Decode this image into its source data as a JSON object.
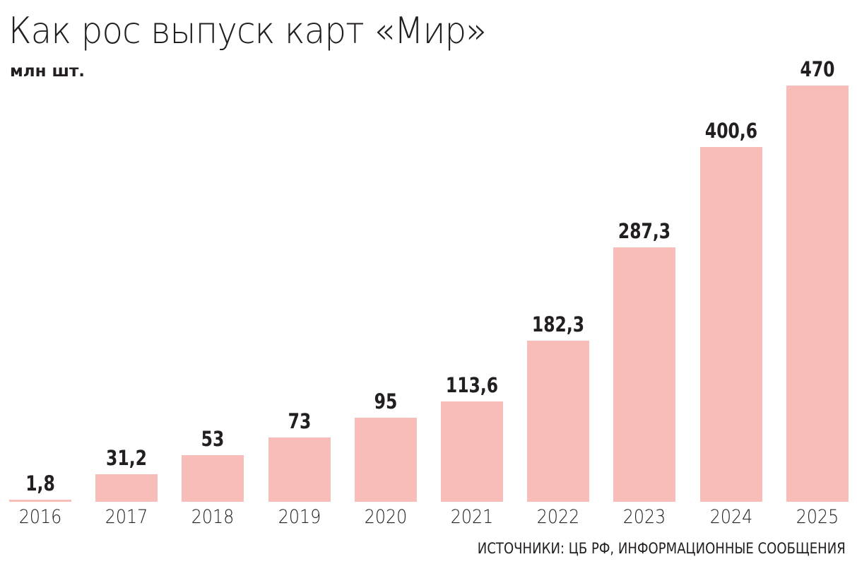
{
  "header": {
    "title": "Как рос выпуск карт «Мир»",
    "subtitle": "млн шт."
  },
  "footer": {
    "source": "ИСТОЧНИКИ: ЦБ РФ, ИНФОРМАЦИОННЫЕ СООБЩЕНИЯ"
  },
  "colors": {
    "bar": "#f8bdb8",
    "text": "#231f20",
    "background": "#ffffff"
  },
  "bars": [
    {
      "year": "2016",
      "label": "1,8"
    },
    {
      "year": "2017",
      "label": "31,2"
    },
    {
      "year": "2018",
      "label": "53"
    },
    {
      "year": "2019",
      "label": "73"
    },
    {
      "year": "2020",
      "label": "95"
    },
    {
      "year": "2021",
      "label": "113,6"
    },
    {
      "year": "2022",
      "label": "182,3"
    },
    {
      "year": "2023",
      "label": "287,3"
    },
    {
      "year": "2024",
      "label": "400,6"
    },
    {
      "year": "2025",
      "label": "470"
    }
  ],
  "chart_data": {
    "type": "bar",
    "title": "Как рос выпуск карт «Мир»",
    "subtitle": "млн шт.",
    "categories": [
      "2016",
      "2017",
      "2018",
      "2019",
      "2020",
      "2021",
      "2022",
      "2023",
      "2024",
      "2025"
    ],
    "values": [
      1.8,
      31.2,
      53,
      73,
      95,
      113.6,
      182.3,
      287.3,
      400.6,
      470
    ],
    "xlabel": "",
    "ylabel": "млн шт.",
    "ylim": [
      0,
      470
    ],
    "grid": false,
    "legend": null,
    "data_labels": true,
    "source": "ИСТОЧНИКИ: ЦБ РФ, ИНФОРМАЦИОННЫЕ СООБЩЕНИЯ"
  }
}
